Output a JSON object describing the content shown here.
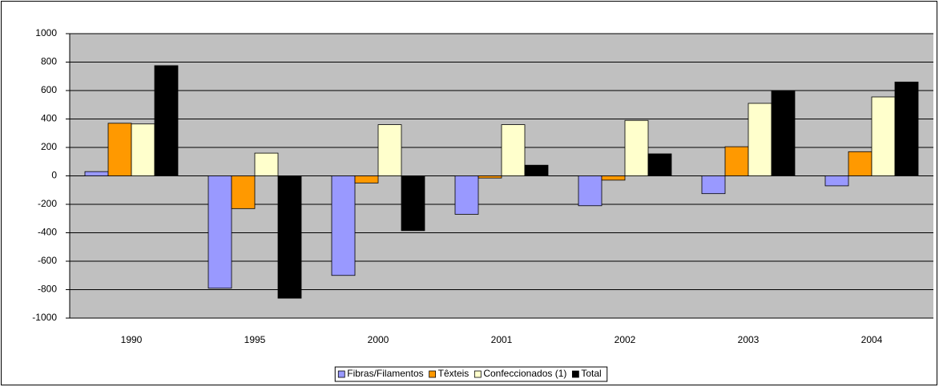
{
  "chart_data": {
    "type": "bar",
    "categories": [
      "1990",
      "1995",
      "2000",
      "2001",
      "2002",
      "2003",
      "2004"
    ],
    "series": [
      {
        "name": "Fibras/Filamentos",
        "color": "#9999ff",
        "values": [
          30,
          -790,
          -700,
          -270,
          -210,
          -125,
          -70
        ]
      },
      {
        "name": "Têxteis",
        "color": "#ff9900",
        "values": [
          370,
          -230,
          -50,
          -15,
          -30,
          205,
          170
        ]
      },
      {
        "name": "Confeccionados (1)",
        "color": "#ffffcc",
        "values": [
          365,
          160,
          360,
          360,
          390,
          510,
          555
        ]
      },
      {
        "name": "Total",
        "color": "#000000",
        "values": [
          775,
          -860,
          -385,
          75,
          155,
          600,
          660
        ]
      }
    ],
    "ylim": [
      -1000,
      1000
    ],
    "yticks": [
      -1000,
      -800,
      -600,
      -400,
      -200,
      0,
      200,
      400,
      600,
      800,
      1000
    ],
    "grid": true,
    "legend": "bottom"
  }
}
